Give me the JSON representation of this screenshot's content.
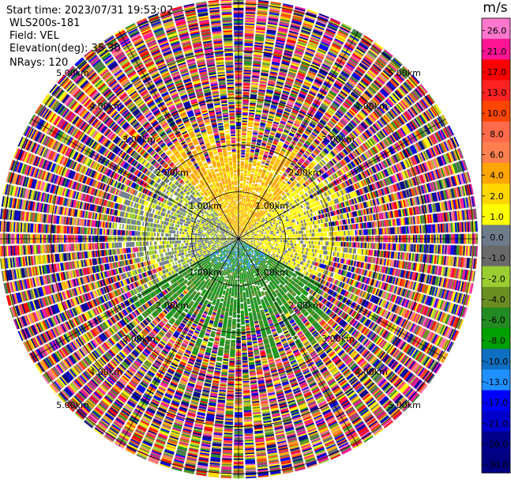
{
  "info": {
    "start_time": "Start time: 2023/07/31 19:53:02",
    "instrument": "WLS200s-181",
    "field": "Field: VEL",
    "elevation": "Elevation(deg): 35.30",
    "nrays": "NRays: 120"
  },
  "chart_data": {
    "type": "heatmap",
    "projection": "polar PPI",
    "field": "VEL",
    "units": "m/s",
    "n_rays": 120,
    "elevation_deg": 35.3,
    "range_rings_km": [
      1.0,
      2.0,
      3.0,
      4.0,
      5.0
    ],
    "max_range_km": 5.1,
    "ring_label_text": [
      "1.00km",
      "2.00km",
      "3.00km",
      "4.00km",
      "5.00km"
    ],
    "colorbar": {
      "unit": "m/s",
      "range": [
        -30,
        30
      ],
      "tick_labels": [
        "26.0",
        "21.0",
        "17.0",
        "13.0",
        "10.0",
        "8.0",
        "6.0",
        "4.0",
        "2.0",
        "1.0",
        "0.0",
        "-1.0",
        "-2.0",
        "-4.0",
        "-6.0",
        "-8.0",
        "-10.0",
        "-13.0",
        "-17.0",
        "-21.0",
        "-26.0",
        "-30.0"
      ],
      "colors": [
        "#ff77cc",
        "#ff1493",
        "#ff0000",
        "#ff2222",
        "#ff4500",
        "#ff6a4a",
        "#ff7f50",
        "#ffa500",
        "#ffd700",
        "#ffff00",
        "#6e7b8b",
        "#696969",
        "#9acd32",
        "#6b8e23",
        "#228b22",
        "#00a000",
        "#0f6fc0",
        "#1e90ff",
        "#0000ff",
        "#0000cd",
        "#00008b",
        "#000080"
      ]
    },
    "structure": {
      "inner_signal_radius_km": 2.5,
      "noise_colors": [
        "#ff1493",
        "#ff69b4",
        "#ff0000",
        "#0000cd",
        "#00008b",
        "#000080",
        "#ffa500",
        "#ff4500",
        "#ffff00",
        "#ffd700",
        "#9acd32",
        "#228b22",
        "#6b8e23",
        "#0000ff",
        "#ff7f50",
        "#696969",
        "#c71585"
      ]
    }
  }
}
